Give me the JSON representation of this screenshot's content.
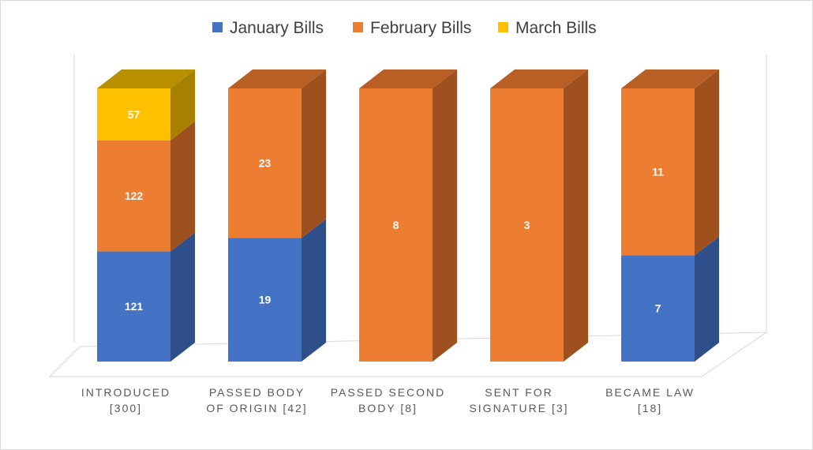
{
  "chart_data": {
    "type": "bar",
    "stacked": true,
    "three_d": true,
    "title": "",
    "xlabel": "",
    "ylabel": "",
    "categories": [
      [
        "INTRODUCED",
        "[300]"
      ],
      [
        "PASSED BODY",
        "OF ORIGIN [42]"
      ],
      [
        "PASSED SECOND",
        "BODY [8]"
      ],
      [
        "SENT FOR",
        "SIGNATURE [3]"
      ],
      [
        "BECAME LAW",
        "[18]"
      ]
    ],
    "series": [
      {
        "name": "January Bills",
        "color": "#4472c4",
        "side": "#2f4f8a",
        "top": "#3a63ab",
        "values": [
          121,
          19,
          0,
          0,
          7
        ]
      },
      {
        "name": "February Bills",
        "color": "#ed7d31",
        "side": "#9e501f",
        "top": "#b85f25",
        "values": [
          122,
          23,
          8,
          3,
          11
        ]
      },
      {
        "name": "March Bills",
        "color": "#ffc000",
        "side": "#a88000",
        "top": "#b89000",
        "values": [
          57,
          0,
          0,
          0,
          0
        ]
      }
    ],
    "normalized": true,
    "legend": "top",
    "grid": false
  }
}
